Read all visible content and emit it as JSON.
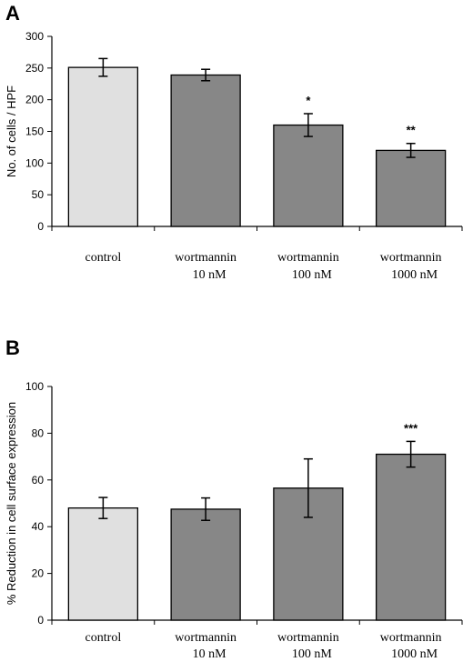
{
  "chart_data": [
    {
      "panel": "A",
      "type": "bar",
      "ylabel": "No. of cells / HPF",
      "ylim": [
        0,
        300
      ],
      "yticks": [
        0,
        50,
        100,
        150,
        200,
        250,
        300
      ],
      "categories": [
        [
          "control"
        ],
        [
          "wortmannin",
          "10 nM"
        ],
        [
          "wortmannin",
          "100 nM"
        ],
        [
          "wortmannin",
          "1000 nM"
        ]
      ],
      "values": [
        251,
        239,
        160,
        120
      ],
      "errors": [
        14,
        9,
        18,
        11
      ],
      "annotations": [
        "",
        "",
        "*",
        "**"
      ],
      "colors": [
        "#e0e0e0",
        "#878787",
        "#878787",
        "#878787"
      ]
    },
    {
      "panel": "B",
      "type": "bar",
      "ylabel": "% Reduction in cell surface expression",
      "ylim": [
        0,
        100
      ],
      "yticks": [
        0,
        20,
        40,
        60,
        80,
        100
      ],
      "categories": [
        [
          "control"
        ],
        [
          "wortmannin",
          "10 nM"
        ],
        [
          "wortmannin",
          "100 nM"
        ],
        [
          "wortmannin",
          "1000 nM"
        ]
      ],
      "values": [
        48,
        47.5,
        56.5,
        71
      ],
      "errors": [
        4.5,
        4.8,
        12.5,
        5.5
      ],
      "annotations": [
        "",
        "",
        "",
        "***"
      ],
      "colors": [
        "#e0e0e0",
        "#878787",
        "#878787",
        "#878787"
      ]
    }
  ]
}
